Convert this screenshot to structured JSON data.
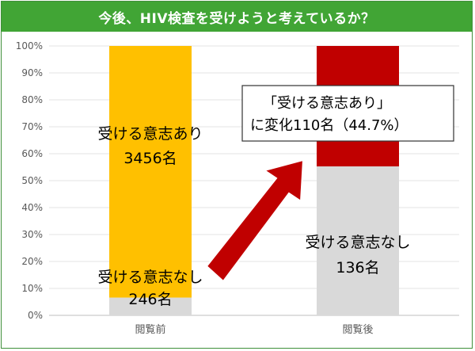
{
  "header": {
    "title": "今後、HIV検査を受けようと考えているか？"
  },
  "colors": {
    "willing": "#ffc000",
    "not_willing": "#d9d9d9",
    "changed": "#c00000",
    "arrow": "#c00000",
    "title_bg": "#41a535"
  },
  "chart_data": {
    "type": "bar",
    "stacked": true,
    "ylim": [
      0,
      100
    ],
    "yticks": [
      "0%",
      "10%",
      "20%",
      "30%",
      "40%",
      "50%",
      "60%",
      "70%",
      "80%",
      "90%",
      "100%"
    ],
    "categories": [
      "閲覧前",
      "閲覧後"
    ],
    "segments": [
      {
        "category": "閲覧前",
        "parts": [
          {
            "key": "not_willing",
            "from": 0,
            "to": 6.6
          },
          {
            "key": "willing",
            "from": 6.6,
            "to": 100
          }
        ]
      },
      {
        "category": "閲覧後",
        "parts": [
          {
            "key": "not_willing",
            "from": 0,
            "to": 55.3
          },
          {
            "key": "changed",
            "from": 55.3,
            "to": 100
          }
        ]
      }
    ],
    "labels": {
      "before_willing_line1": "受ける意志あり",
      "before_willing_line2": "3456名",
      "before_not_line1": "受ける意志なし",
      "before_not_line2": "246名",
      "after_not_line1": "受ける意志なし",
      "after_not_line2": "136名",
      "callout_line1": "「受ける意志あり」",
      "callout_line2": "に変化110名（44.7%）"
    }
  }
}
